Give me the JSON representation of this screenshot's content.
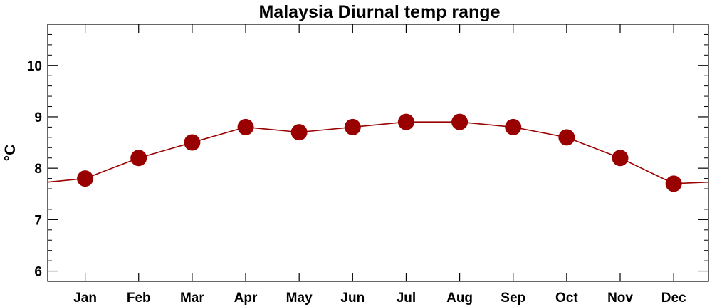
{
  "chart_data": {
    "type": "line",
    "title": "Malaysia Diurnal temp range",
    "xlabel": "",
    "ylabel": "°C",
    "categories": [
      "Jan",
      "Feb",
      "Mar",
      "Apr",
      "May",
      "Jun",
      "Jul",
      "Aug",
      "Sep",
      "Oct",
      "Nov",
      "Dec"
    ],
    "series": [
      {
        "values": [
          7.8,
          8.2,
          8.5,
          8.8,
          8.7,
          8.8,
          8.9,
          8.9,
          8.8,
          8.6,
          8.2,
          7.7
        ],
        "color": "#990000"
      }
    ],
    "ylim": [
      5.8,
      10.8
    ],
    "yticks": [
      6,
      7,
      8,
      9,
      10
    ],
    "ytick_labels": [
      "6",
      "7",
      "8",
      "9",
      "10"
    ],
    "y_minor_step": 0.2,
    "grid": false,
    "legend": "none",
    "wraps_cyclically": true,
    "axis_color": "#000000",
    "line_color": "#990000",
    "marker_color": "#990000"
  }
}
